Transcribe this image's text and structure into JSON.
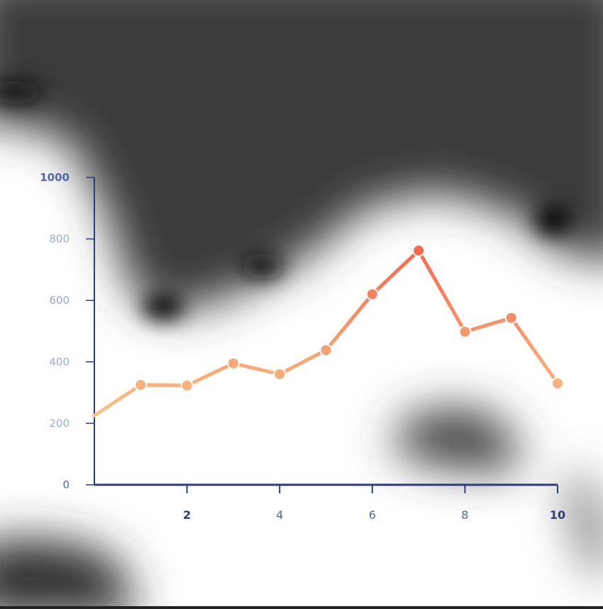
{
  "chart_data": {
    "type": "line",
    "title": "",
    "xlabel": "",
    "ylabel": "",
    "x": [
      0,
      1,
      2,
      3,
      4,
      5,
      6,
      7,
      8,
      9,
      10
    ],
    "series": [
      {
        "values": [
          225,
          325,
          323,
          395,
          360,
          438,
          620,
          762,
          498,
          543,
          330
        ]
      }
    ],
    "xlim": [
      0,
      10
    ],
    "ylim": [
      0,
      1000
    ],
    "xticks": [
      2,
      4,
      6,
      8,
      10
    ],
    "yticks": [
      0,
      200,
      400,
      600,
      800,
      1000
    ],
    "xtick_labels": [
      "2",
      "4",
      "6",
      "8",
      "10"
    ],
    "ytick_labels": [
      "0",
      "200",
      "400",
      "600",
      "800",
      "1000"
    ],
    "grid": false,
    "colors": {
      "axis": "#2f3b7a",
      "tick_label_light": "#9aaad8",
      "tick_label_mid": "#5566a8",
      "tick_label_dark": "#2f3b7a",
      "line_low": "#fde6a0",
      "line_high": "#f4664a"
    }
  }
}
